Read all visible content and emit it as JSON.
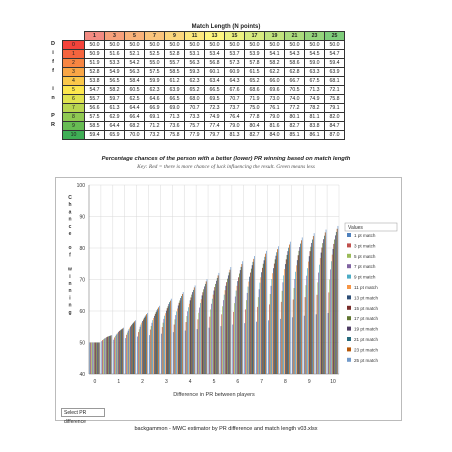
{
  "table": {
    "title": "Match Length (N points)",
    "side_label": [
      "D",
      "i",
      "f",
      "f",
      "",
      "i",
      "n",
      "",
      "P",
      "R"
    ],
    "col_headers": [
      "1",
      "3",
      "5",
      "7",
      "9",
      "11",
      "13",
      "15",
      "17",
      "19",
      "21",
      "23",
      "25"
    ],
    "row_headers": [
      "0",
      "1",
      "2",
      "3",
      "4",
      "5",
      "6",
      "7",
      "8",
      "9",
      "10"
    ],
    "rows": [
      [
        "50.0",
        "50.0",
        "50.0",
        "50.0",
        "50.0",
        "50.0",
        "50.0",
        "50.0",
        "50.0",
        "50.0",
        "50.0",
        "50.0",
        "50.0"
      ],
      [
        "50.9",
        "51.6",
        "52.1",
        "52.5",
        "52.8",
        "53.1",
        "53.4",
        "53.7",
        "53.9",
        "54.1",
        "54.3",
        "54.5",
        "54.7"
      ],
      [
        "51.9",
        "53.3",
        "54.2",
        "55.0",
        "55.7",
        "56.3",
        "56.8",
        "57.3",
        "57.8",
        "58.2",
        "58.6",
        "59.0",
        "59.4"
      ],
      [
        "52.8",
        "54.9",
        "56.3",
        "57.5",
        "58.5",
        "59.3",
        "60.1",
        "60.9",
        "61.5",
        "62.2",
        "62.8",
        "63.3",
        "63.9"
      ],
      [
        "53.8",
        "56.5",
        "58.4",
        "59.9",
        "61.2",
        "62.3",
        "63.4",
        "64.3",
        "65.2",
        "66.0",
        "66.7",
        "67.5",
        "68.1"
      ],
      [
        "54.7",
        "58.2",
        "60.5",
        "62.3",
        "63.9",
        "65.2",
        "66.5",
        "67.6",
        "68.6",
        "69.6",
        "70.5",
        "71.3",
        "72.1"
      ],
      [
        "55.7",
        "59.7",
        "62.5",
        "64.6",
        "66.5",
        "68.0",
        "69.5",
        "70.7",
        "71.9",
        "73.0",
        "74.0",
        "74.9",
        "75.8"
      ],
      [
        "56.6",
        "61.3",
        "64.4",
        "66.9",
        "69.0",
        "70.7",
        "72.3",
        "73.7",
        "75.0",
        "76.1",
        "77.2",
        "78.2",
        "79.1"
      ],
      [
        "57.5",
        "62.9",
        "66.4",
        "69.1",
        "71.3",
        "73.3",
        "74.9",
        "76.4",
        "77.8",
        "79.0",
        "80.1",
        "81.1",
        "82.0"
      ],
      [
        "58.5",
        "64.4",
        "68.2",
        "71.2",
        "73.6",
        "75.7",
        "77.4",
        "79.0",
        "80.4",
        "81.6",
        "82.7",
        "83.8",
        "84.7"
      ],
      [
        "59.4",
        "65.9",
        "70.0",
        "73.2",
        "75.8",
        "77.9",
        "79.7",
        "81.3",
        "82.7",
        "84.0",
        "85.1",
        "86.1",
        "87.0"
      ]
    ],
    "header_colors": [
      "#f28b82",
      "#f6a07a",
      "#f8b27a",
      "#f9c47c",
      "#fbd67d",
      "#fce77e",
      "#fef680",
      "#ecf180",
      "#d7ea7f",
      "#c1e27e",
      "#abdb7d",
      "#95d47c",
      "#7fcd7b"
    ],
    "row_colors": [
      "#f4433b",
      "#f5643e",
      "#f78542",
      "#f9a646",
      "#fbc84a",
      "#fde74e",
      "#e0e34f",
      "#b8d650",
      "#8fc952",
      "#67bc53",
      "#3fae55"
    ]
  },
  "chart_data": {
    "type": "bar",
    "title": "Percentage chances of the person with a better (lower) PR winning based on match length",
    "subtitle": "Key: Red = there is more chance of luck influencing the result. Green means less",
    "xlabel": "Difference in PR between players",
    "ylabel": "Chance of winning",
    "ylim": [
      40,
      100
    ],
    "yticks": [
      40,
      50,
      60,
      70,
      80,
      90,
      100
    ],
    "categories": [
      "0",
      "0.5",
      "1",
      "1.5",
      "2",
      "2.5",
      "3",
      "3.5",
      "4",
      "4.5",
      "5",
      "5.5",
      "6",
      "6.5",
      "7",
      "7.5",
      "8",
      "8.5",
      "9",
      "9.5",
      "10"
    ],
    "xtick_labels": [
      "0",
      "1",
      "2",
      "3",
      "4",
      "5",
      "6",
      "7",
      "8",
      "9",
      "10"
    ],
    "legend_title": "Values",
    "legend_position": "right",
    "grid": true,
    "series": [
      {
        "name": "1 pt match",
        "color": "#4f81bd"
      },
      {
        "name": "3 pt match",
        "color": "#c0504d"
      },
      {
        "name": "5 pt match",
        "color": "#9bbb59"
      },
      {
        "name": "7 pt match",
        "color": "#8064a2"
      },
      {
        "name": "9 pt match",
        "color": "#4bacc6"
      },
      {
        "name": "11 pt match",
        "color": "#f79646"
      },
      {
        "name": "13 pt match",
        "color": "#2c4d75"
      },
      {
        "name": "15 pt match",
        "color": "#772c2a"
      },
      {
        "name": "17 pt match",
        "color": "#5f7530"
      },
      {
        "name": "19 pt match",
        "color": "#4d3b62"
      },
      {
        "name": "21 pt match",
        "color": "#276a7c"
      },
      {
        "name": "23 pt match",
        "color": "#b65708"
      },
      {
        "name": "25 pt match",
        "color": "#729aca"
      }
    ],
    "values_at_integer_pr": [
      [
        50.0,
        50.9,
        51.9,
        52.8,
        53.8,
        54.7,
        55.7,
        56.6,
        57.5,
        58.5,
        59.4
      ],
      [
        50.0,
        51.6,
        53.3,
        54.9,
        56.5,
        58.2,
        59.7,
        61.3,
        62.9,
        64.4,
        65.9
      ],
      [
        50.0,
        52.1,
        54.2,
        56.3,
        58.4,
        60.5,
        62.5,
        64.4,
        66.4,
        68.2,
        70.0
      ],
      [
        50.0,
        52.5,
        55.0,
        57.5,
        59.9,
        62.3,
        64.6,
        66.9,
        69.1,
        71.2,
        73.2
      ],
      [
        50.0,
        52.8,
        55.7,
        58.5,
        61.2,
        63.9,
        66.5,
        69.0,
        71.3,
        73.6,
        75.8
      ],
      [
        50.0,
        53.1,
        56.3,
        59.3,
        62.3,
        65.2,
        68.0,
        70.7,
        73.3,
        75.7,
        77.9
      ],
      [
        50.0,
        53.4,
        56.8,
        60.1,
        63.4,
        66.5,
        69.5,
        72.3,
        74.9,
        77.4,
        79.7
      ],
      [
        50.0,
        53.7,
        57.3,
        60.9,
        64.3,
        67.6,
        70.7,
        73.7,
        76.4,
        79.0,
        81.3
      ],
      [
        50.0,
        53.9,
        57.8,
        61.5,
        65.2,
        68.6,
        71.9,
        75.0,
        77.8,
        80.4,
        82.7
      ],
      [
        50.0,
        54.1,
        58.2,
        62.2,
        66.0,
        69.6,
        73.0,
        76.1,
        79.0,
        81.6,
        84.0
      ],
      [
        50.0,
        54.3,
        58.6,
        62.8,
        66.7,
        70.5,
        74.0,
        77.2,
        80.1,
        82.7,
        85.1
      ],
      [
        50.0,
        54.5,
        59.0,
        63.3,
        67.5,
        71.3,
        74.9,
        78.2,
        81.1,
        83.8,
        86.1
      ],
      [
        50.0,
        54.7,
        59.4,
        63.9,
        68.1,
        72.1,
        75.8,
        79.1,
        82.0,
        84.7,
        87.0
      ]
    ],
    "interpolate_half_steps": true
  },
  "filter_button": "Select PR difference",
  "footer": "backgammon - MWC estimator by PR difference and match length v03.xlsx"
}
